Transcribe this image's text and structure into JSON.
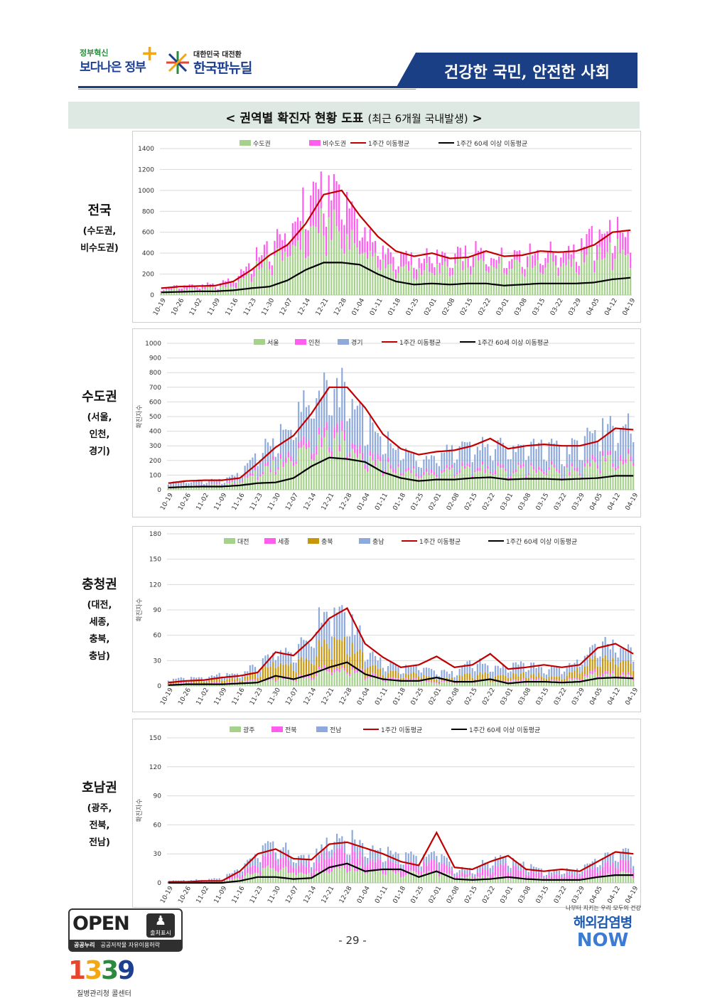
{
  "header": {
    "logo1_small": "정부혁신",
    "logo1_big": "보다나은 정부",
    "logo2_sub": "대한민국 대전환",
    "logo2_main": "한국판뉴딜",
    "banner": "건강한 국민, 안전한 사회"
  },
  "page": {
    "title_main": "< 권역별 확진자 현황 도표",
    "title_paren": "(최근 6개월 국내발생)",
    "title_end": " >",
    "page_number": "- 29 -"
  },
  "regions": [
    {
      "name": "전국",
      "sub": "(수도권,\n비수도권)"
    },
    {
      "name": "수도권",
      "sub": "(서울,\n인천,\n경기)"
    },
    {
      "name": "충청권",
      "sub": "(대전,\n세종,\n충북,\n충남)"
    },
    {
      "name": "호남권",
      "sub": "(광주,\n전북,\n전남)"
    }
  ],
  "footer": {
    "open_label": "OPEN",
    "open_badge": "출처표시",
    "open_bar_bold": "공공누리",
    "open_bar_text": "공공저작물 자유이용허락",
    "logo1339_digits": "1339",
    "logo1339_caption": "질병관리청 콜센터",
    "now_tag": "나부터 지키는 우리 모두의 건강",
    "now_line1": "해외감염병",
    "now_line2": "NOW"
  },
  "colors": {
    "green": "#a5d28b",
    "magenta": "#ff5cf0",
    "blue": "#8ea9db",
    "mustard": "#c8960c",
    "red": "#c00000",
    "black": "#000000",
    "banner": "#1a3f84"
  },
  "chart_data": [
    {
      "type": "bar",
      "stacked": true,
      "xlabels": [
        "10-19",
        "10-26",
        "11-02",
        "11-09",
        "11-16",
        "11-23",
        "11-30",
        "12-07",
        "12-14",
        "12-21",
        "12-28",
        "01-04",
        "01-11",
        "01-18",
        "01-25",
        "02-01",
        "02-08",
        "02-15",
        "02-22",
        "03-01",
        "03-08",
        "03-15",
        "03-22",
        "03-29",
        "04-05",
        "04-12",
        "04-19"
      ],
      "ylim": [
        0,
        1400
      ],
      "yticks": [
        0,
        200,
        400,
        600,
        800,
        1000,
        1200,
        1400
      ],
      "ylabel": "",
      "legend": [
        "수도권",
        "비수도권",
        "1주간 이동평균",
        "1주간 60세 이상 이동평균"
      ],
      "bar_series": [
        {
          "name": "수도권",
          "color": "green",
          "weekly": [
            45,
            55,
            60,
            62,
            95,
            220,
            330,
            420,
            560,
            660,
            600,
            480,
            330,
            250,
            230,
            250,
            250,
            310,
            290,
            310,
            320,
            310,
            310,
            330,
            380,
            420,
            420
          ]
        },
        {
          "name": "비수도권",
          "color": "magenta",
          "weekly": [
            20,
            30,
            30,
            32,
            60,
            100,
            130,
            160,
            330,
            340,
            380,
            220,
            130,
            110,
            120,
            110,
            100,
            110,
            90,
            80,
            100,
            110,
            100,
            120,
            190,
            200,
            170
          ]
        }
      ],
      "line_series": [
        {
          "name": "1주간 이동평균",
          "color": "red",
          "weekly": [
            65,
            80,
            85,
            90,
            130,
            240,
            380,
            480,
            680,
            960,
            1000,
            760,
            560,
            420,
            370,
            400,
            350,
            360,
            420,
            370,
            380,
            420,
            410,
            420,
            480,
            600,
            620
          ]
        },
        {
          "name": "1주간 60세 이상 이동평균",
          "color": "black",
          "weekly": [
            25,
            30,
            35,
            35,
            45,
            65,
            80,
            140,
            240,
            310,
            310,
            290,
            200,
            130,
            100,
            110,
            100,
            110,
            110,
            90,
            100,
            110,
            110,
            110,
            120,
            150,
            165
          ]
        }
      ]
    },
    {
      "type": "bar",
      "stacked": true,
      "xlabels": [
        "10-19",
        "10-26",
        "11-02",
        "11-09",
        "11-16",
        "11-23",
        "11-30",
        "12-07",
        "12-14",
        "12-21",
        "12-28",
        "01-04",
        "01-11",
        "01-18",
        "01-25",
        "02-01",
        "02-08",
        "02-15",
        "02-22",
        "03-01",
        "03-08",
        "03-15",
        "03-22",
        "03-29",
        "04-05",
        "04-12",
        "04-19"
      ],
      "ylim": [
        0,
        1000
      ],
      "yticks": [
        0,
        100,
        200,
        300,
        400,
        500,
        600,
        700,
        800,
        900,
        1000
      ],
      "ylabel": "확진자수",
      "legend": [
        "서울",
        "인천",
        "경기",
        "1주간 이동평균",
        "1주간 60세 이상 이동평균"
      ],
      "bar_series": [
        {
          "name": "서울",
          "color": "green",
          "weekly": [
            25,
            30,
            30,
            30,
            55,
            120,
            160,
            200,
            290,
            330,
            310,
            240,
            160,
            120,
            110,
            110,
            120,
            150,
            130,
            120,
            140,
            140,
            120,
            130,
            170,
            200,
            190
          ]
        },
        {
          "name": "인천",
          "color": "magenta",
          "weekly": [
            5,
            5,
            6,
            6,
            10,
            18,
            25,
            35,
            55,
            60,
            55,
            45,
            30,
            20,
            20,
            20,
            20,
            22,
            20,
            20,
            20,
            22,
            20,
            22,
            30,
            35,
            30
          ]
        },
        {
          "name": "경기",
          "color": "blue",
          "weekly": [
            20,
            25,
            25,
            25,
            40,
            110,
            150,
            190,
            290,
            300,
            280,
            240,
            150,
            120,
            100,
            110,
            110,
            150,
            150,
            140,
            150,
            150,
            150,
            150,
            190,
            200,
            190
          ]
        }
      ],
      "line_series": [
        {
          "name": "1주간 이동평균",
          "color": "red",
          "weekly": [
            45,
            60,
            65,
            65,
            80,
            180,
            290,
            370,
            520,
            700,
            700,
            560,
            380,
            280,
            240,
            260,
            270,
            300,
            350,
            280,
            300,
            310,
            300,
            300,
            330,
            420,
            410
          ]
        },
        {
          "name": "1주간 60세 이상 이동평균",
          "color": "black",
          "weekly": [
            15,
            20,
            22,
            22,
            30,
            45,
            50,
            80,
            160,
            220,
            210,
            190,
            120,
            80,
            60,
            70,
            70,
            80,
            85,
            70,
            75,
            75,
            70,
            75,
            80,
            95,
            95
          ]
        }
      ]
    },
    {
      "type": "bar",
      "stacked": true,
      "xlabels": [
        "10-19",
        "10-26",
        "11-02",
        "11-09",
        "11-16",
        "11-23",
        "11-30",
        "12-07",
        "12-14",
        "12-21",
        "12-28",
        "01-04",
        "01-11",
        "01-18",
        "01-25",
        "02-01",
        "02-08",
        "02-15",
        "02-22",
        "03-01",
        "03-08",
        "03-15",
        "03-22",
        "03-29",
        "04-05",
        "04-12",
        "04-19"
      ],
      "ylim": [
        0,
        180
      ],
      "yticks": [
        0,
        30,
        60,
        90,
        120,
        150,
        180
      ],
      "ylabel": "확진자수",
      "legend": [
        "대전",
        "세종",
        "충북",
        "충남",
        "1주간 이동평균",
        "1주간 60세 이상 이동평균"
      ],
      "bar_series": [
        {
          "name": "대전",
          "color": "green",
          "weekly": [
            2,
            3,
            2,
            3,
            4,
            6,
            8,
            8,
            12,
            20,
            18,
            12,
            8,
            6,
            6,
            4,
            4,
            6,
            5,
            6,
            6,
            6,
            5,
            8,
            14,
            12,
            10
          ]
        },
        {
          "name": "세종",
          "color": "magenta",
          "weekly": [
            1,
            1,
            1,
            1,
            1,
            2,
            2,
            2,
            3,
            4,
            3,
            3,
            2,
            2,
            2,
            1,
            1,
            1,
            1,
            1,
            2,
            2,
            1,
            2,
            4,
            3,
            3
          ]
        },
        {
          "name": "충북",
          "color": "mustard",
          "weekly": [
            2,
            2,
            3,
            4,
            4,
            8,
            18,
            14,
            20,
            30,
            30,
            14,
            8,
            6,
            6,
            4,
            4,
            8,
            6,
            6,
            6,
            4,
            4,
            10,
            14,
            16,
            14
          ]
        },
        {
          "name": "충남",
          "color": "blue",
          "weekly": [
            3,
            3,
            4,
            6,
            5,
            8,
            15,
            15,
            25,
            40,
            35,
            16,
            10,
            8,
            10,
            8,
            6,
            14,
            10,
            10,
            12,
            10,
            10,
            10,
            18,
            18,
            14
          ]
        }
      ],
      "line_series": [
        {
          "name": "1주간 이동평균",
          "color": "red",
          "weekly": [
            4,
            6,
            7,
            10,
            12,
            16,
            40,
            36,
            55,
            80,
            92,
            50,
            34,
            22,
            25,
            35,
            22,
            25,
            38,
            20,
            22,
            25,
            22,
            25,
            45,
            50,
            38
          ]
        },
        {
          "name": "1주간 60세 이상 이동평균",
          "color": "black",
          "weekly": [
            1,
            2,
            2,
            2,
            3,
            4,
            12,
            8,
            14,
            22,
            28,
            14,
            8,
            6,
            6,
            10,
            5,
            5,
            8,
            3,
            5,
            5,
            4,
            5,
            9,
            10,
            9
          ]
        }
      ]
    },
    {
      "type": "bar",
      "stacked": true,
      "xlabels": [
        "10-19",
        "10-26",
        "11-02",
        "11-09",
        "11-16",
        "11-23",
        "11-30",
        "12-07",
        "12-14",
        "12-21",
        "12-28",
        "01-04",
        "01-11",
        "01-18",
        "01-25",
        "02-01",
        "02-08",
        "02-15",
        "02-22",
        "03-01",
        "03-08",
        "03-15",
        "03-22",
        "03-29",
        "04-05",
        "04-12",
        "04-19"
      ],
      "ylim": [
        0,
        150
      ],
      "yticks": [
        0,
        30,
        60,
        90,
        120,
        150
      ],
      "ylabel": "확진자수",
      "legend": [
        "광주",
        "전북",
        "전남",
        "1주간 이동평균",
        "1주간 60세 이상 이동평균"
      ],
      "bar_series": [
        {
          "name": "광주",
          "color": "green",
          "weekly": [
            1,
            1,
            1,
            2,
            5,
            12,
            15,
            12,
            8,
            14,
            16,
            14,
            12,
            10,
            10,
            12,
            6,
            6,
            6,
            6,
            4,
            4,
            4,
            4,
            6,
            10,
            8
          ]
        },
        {
          "name": "전북",
          "color": "magenta",
          "weekly": [
            0,
            1,
            1,
            1,
            4,
            10,
            14,
            10,
            10,
            18,
            18,
            12,
            10,
            10,
            8,
            12,
            4,
            4,
            8,
            12,
            8,
            4,
            5,
            5,
            10,
            12,
            10
          ]
        },
        {
          "name": "전남",
          "color": "blue",
          "weekly": [
            1,
            1,
            1,
            2,
            6,
            10,
            12,
            8,
            8,
            12,
            12,
            12,
            10,
            10,
            8,
            10,
            4,
            4,
            8,
            8,
            6,
            4,
            4,
            4,
            8,
            10,
            10
          ]
        }
      ],
      "line_series": [
        {
          "name": "1주간 이동평균",
          "color": "red",
          "weekly": [
            1,
            1,
            2,
            2,
            12,
            30,
            35,
            25,
            24,
            40,
            42,
            36,
            30,
            22,
            18,
            52,
            16,
            14,
            22,
            28,
            14,
            12,
            14,
            12,
            22,
            32,
            30
          ]
        },
        {
          "name": "1주간 60세 이상 이동평균",
          "color": "black",
          "weekly": [
            0,
            0,
            0,
            0,
            2,
            6,
            6,
            4,
            5,
            16,
            20,
            12,
            14,
            14,
            6,
            12,
            4,
            3,
            4,
            6,
            4,
            3,
            3,
            3,
            6,
            8,
            8
          ]
        }
      ]
    }
  ]
}
